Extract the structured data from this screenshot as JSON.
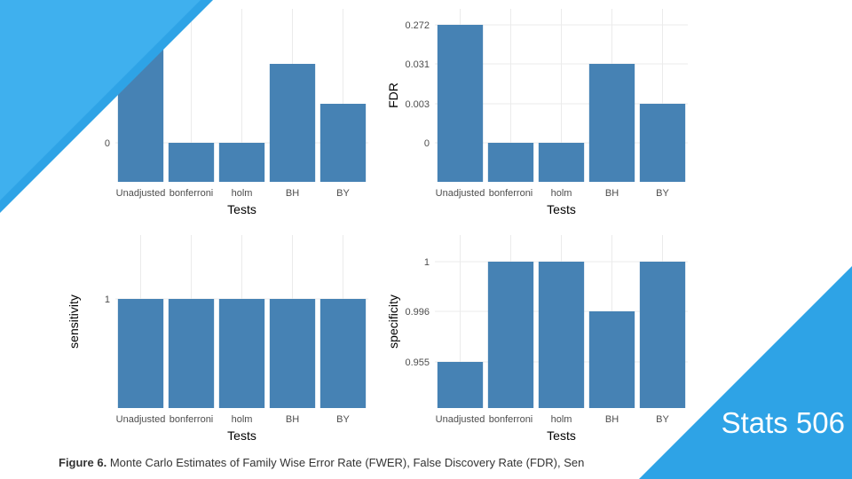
{
  "colors": {
    "bar": "#4682b4",
    "grid": "#ebebeb",
    "accent": "#2ea3e6"
  },
  "caption": {
    "bold": "Figure 6.",
    "text": "Monte Carlo Estimates of Family Wise Error Rate (FWER), False Discovery Rate (FDR), Sen"
  },
  "badge": "Stats 506",
  "chart_data": [
    {
      "type": "bar",
      "title": "",
      "xlabel": "Tests",
      "ylabel": "",
      "categories": [
        "Unadjusted",
        "bonferroni",
        "holm",
        "BH",
        "BY"
      ],
      "yticks": [
        "0"
      ],
      "values": [
        0.1,
        0,
        0,
        0.05,
        0.02
      ]
    },
    {
      "type": "bar",
      "title": "",
      "xlabel": "Tests",
      "ylabel": "FDR",
      "categories": [
        "Unadjusted",
        "bonferroni",
        "holm",
        "BH",
        "BY"
      ],
      "yticks": [
        "0",
        "0.003",
        "0.031",
        "0.272"
      ],
      "values": [
        0.272,
        0,
        0,
        0.031,
        0.003
      ]
    },
    {
      "type": "bar",
      "title": "",
      "xlabel": "Tests",
      "ylabel": "sensitivity",
      "categories": [
        "Unadjusted",
        "bonferroni",
        "holm",
        "BH",
        "BY"
      ],
      "yticks": [
        "1"
      ],
      "values": [
        1,
        1,
        1,
        1,
        1
      ]
    },
    {
      "type": "bar",
      "title": "",
      "xlabel": "Tests",
      "ylabel": "specificity",
      "categories": [
        "Unadjusted",
        "bonferroni",
        "holm",
        "BH",
        "BY"
      ],
      "yticks": [
        "0.955",
        "0.996",
        "1"
      ],
      "values": [
        0.955,
        1,
        1,
        0.996,
        1
      ]
    }
  ]
}
